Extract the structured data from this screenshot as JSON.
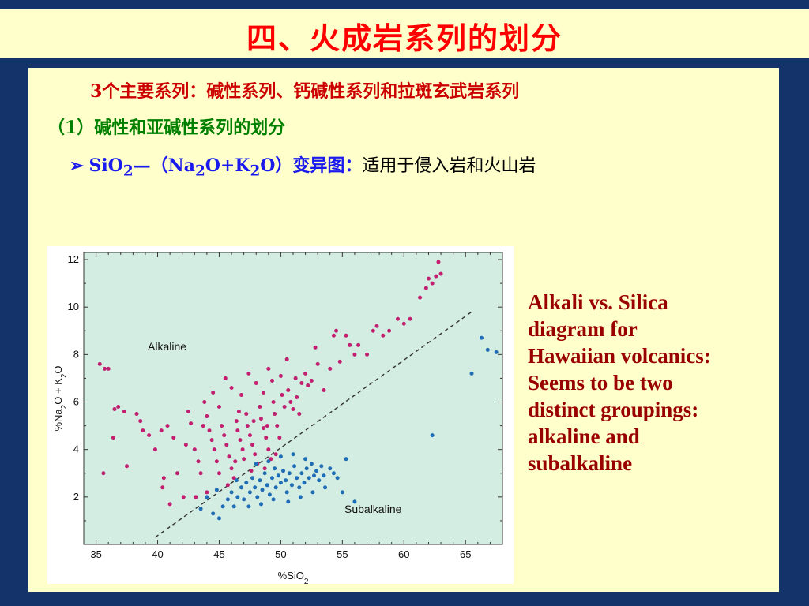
{
  "slide": {
    "title": "四、火成岩系列的划分",
    "line1": "3个主要系列：碱性系列、钙碱性系列和拉斑玄武岩系列",
    "line2": "（1）碱性和亚碱性系列的划分",
    "line3": {
      "bullet": "➢",
      "p1": "SiO",
      "s1": "2",
      "p2": "—（Na",
      "s2": "2",
      "p3": "O+K",
      "s3": "2",
      "p4": "O）变异图：",
      "p5": "适用于侵入岩和火山岩"
    },
    "caption": [
      "Alkali vs. Silica",
      "diagram for",
      "Hawaiian volcanics:",
      "Seems to be two",
      "distinct groupings:",
      "alkaline and",
      "subalkaline"
    ]
  },
  "colors": {
    "background": "#13336a",
    "panel": "#ffffcc",
    "plot_bg": "#d4ede2",
    "alkaline": "#c0206f",
    "subalkaline": "#1f6db5",
    "title": "#ff0000"
  },
  "chart_data": {
    "type": "scatter",
    "title": "",
    "xlabel": "%SiO2",
    "ylabel": "%Na2O + K2O",
    "xlim": [
      34,
      68
    ],
    "ylim": [
      0,
      12.3
    ],
    "x_ticks": [
      35,
      40,
      45,
      50,
      55,
      60,
      65
    ],
    "y_ticks": [
      2,
      4,
      6,
      8,
      10,
      12
    ],
    "annotations": [
      "Alkaline",
      "Subalkaline"
    ],
    "divider": {
      "x": [
        39.8,
        65.5
      ],
      "y": [
        0.3,
        9.8
      ],
      "style": "dashed"
    },
    "series": [
      {
        "key": "alkaline",
        "points": [
          [
            35.3,
            7.6
          ],
          [
            35.7,
            7.4
          ],
          [
            36.0,
            7.4
          ],
          [
            35.6,
            3.0
          ],
          [
            36.5,
            5.7
          ],
          [
            36.8,
            5.8
          ],
          [
            37.3,
            5.6
          ],
          [
            37.5,
            3.3
          ],
          [
            36.4,
            4.5
          ],
          [
            38.3,
            5.5
          ],
          [
            38.6,
            5.2
          ],
          [
            38.8,
            4.8
          ],
          [
            39.3,
            4.6
          ],
          [
            39.8,
            4.0
          ],
          [
            40.3,
            4.8
          ],
          [
            40.5,
            2.8
          ],
          [
            40.4,
            2.4
          ],
          [
            40.8,
            5.0
          ],
          [
            41.3,
            4.5
          ],
          [
            41.6,
            3.0
          ],
          [
            41.0,
            1.7
          ],
          [
            42.1,
            2.0
          ],
          [
            42.3,
            4.2
          ],
          [
            42.5,
            5.6
          ],
          [
            42.7,
            5.1
          ],
          [
            43.1,
            2.0
          ],
          [
            43.0,
            4.0
          ],
          [
            43.3,
            3.5
          ],
          [
            43.7,
            5.0
          ],
          [
            44.0,
            5.4
          ],
          [
            44.2,
            4.8
          ],
          [
            44.4,
            4.4
          ],
          [
            44.6,
            4.0
          ],
          [
            44.8,
            3.5
          ],
          [
            45.0,
            3.0
          ],
          [
            45.2,
            5.0
          ],
          [
            45.4,
            4.6
          ],
          [
            45.6,
            4.2
          ],
          [
            45.8,
            3.7
          ],
          [
            46.0,
            3.2
          ],
          [
            46.2,
            2.8
          ],
          [
            46.4,
            5.2
          ],
          [
            46.5,
            4.8
          ],
          [
            46.7,
            4.4
          ],
          [
            46.9,
            4.0
          ],
          [
            47.0,
            3.6
          ],
          [
            47.2,
            5.5
          ],
          [
            47.3,
            5.0
          ],
          [
            47.5,
            4.6
          ],
          [
            47.7,
            4.2
          ],
          [
            47.9,
            3.8
          ],
          [
            48.1,
            3.4
          ],
          [
            48.3,
            5.8
          ],
          [
            48.4,
            5.3
          ],
          [
            48.6,
            4.9
          ],
          [
            48.8,
            4.5
          ],
          [
            49.0,
            4.0
          ],
          [
            49.2,
            3.6
          ],
          [
            49.4,
            6.0
          ],
          [
            49.5,
            5.5
          ],
          [
            49.7,
            5.0
          ],
          [
            49.9,
            4.5
          ],
          [
            50.1,
            6.3
          ],
          [
            50.3,
            5.8
          ],
          [
            50.6,
            6.5
          ],
          [
            50.8,
            6.0
          ],
          [
            51.0,
            5.7
          ],
          [
            51.3,
            6.2
          ],
          [
            51.5,
            5.5
          ],
          [
            51.7,
            6.8
          ],
          [
            52.0,
            7.2
          ],
          [
            52.2,
            6.7
          ],
          [
            52.5,
            6.9
          ],
          [
            53.0,
            7.6
          ],
          [
            53.5,
            6.5
          ],
          [
            54.0,
            7.4
          ],
          [
            54.3,
            8.8
          ],
          [
            54.5,
            9.0
          ],
          [
            54.8,
            7.7
          ],
          [
            55.3,
            8.8
          ],
          [
            55.6,
            8.4
          ],
          [
            56.0,
            8.0
          ],
          [
            56.3,
            8.4
          ],
          [
            57.0,
            8.0
          ],
          [
            57.5,
            9.0
          ],
          [
            57.8,
            9.2
          ],
          [
            58.3,
            8.8
          ],
          [
            58.8,
            9.0
          ],
          [
            59.5,
            9.5
          ],
          [
            60.0,
            9.3
          ],
          [
            60.5,
            9.5
          ],
          [
            61.3,
            10.4
          ],
          [
            61.8,
            10.8
          ],
          [
            62.0,
            11.2
          ],
          [
            62.3,
            11.0
          ],
          [
            62.6,
            11.3
          ],
          [
            62.8,
            11.9
          ],
          [
            63.0,
            11.4
          ],
          [
            45.5,
            7.0
          ],
          [
            46.0,
            6.6
          ],
          [
            46.8,
            6.3
          ],
          [
            47.4,
            7.2
          ],
          [
            48.0,
            6.8
          ],
          [
            48.6,
            6.4
          ],
          [
            49.0,
            7.4
          ],
          [
            49.3,
            6.9
          ],
          [
            50.0,
            7.1
          ],
          [
            50.5,
            7.8
          ],
          [
            51.2,
            7.0
          ],
          [
            52.8,
            8.3
          ],
          [
            44.5,
            6.4
          ],
          [
            43.8,
            6.0
          ],
          [
            45.0,
            5.8
          ],
          [
            46.6,
            5.6
          ],
          [
            47.8,
            5.2
          ],
          [
            48.9,
            5.0
          ],
          [
            46.3,
            3.5
          ],
          [
            47.6,
            3.1
          ],
          [
            48.7,
            3.2
          ],
          [
            49.6,
            3.8
          ],
          [
            44.0,
            2.2
          ],
          [
            43.5,
            3.0
          ],
          [
            45.7,
            2.5
          ]
        ]
      },
      {
        "key": "subalkaline",
        "points": [
          [
            44.5,
            1.3
          ],
          [
            45.0,
            1.1
          ],
          [
            45.3,
            1.6
          ],
          [
            45.7,
            1.9
          ],
          [
            46.0,
            2.2
          ],
          [
            46.2,
            1.6
          ],
          [
            46.5,
            2.0
          ],
          [
            46.8,
            2.4
          ],
          [
            47.0,
            1.9
          ],
          [
            47.2,
            2.6
          ],
          [
            47.5,
            2.2
          ],
          [
            47.7,
            2.8
          ],
          [
            47.9,
            2.4
          ],
          [
            48.1,
            2.0
          ],
          [
            48.3,
            2.7
          ],
          [
            48.5,
            2.3
          ],
          [
            48.7,
            3.0
          ],
          [
            48.9,
            2.5
          ],
          [
            49.1,
            2.1
          ],
          [
            49.3,
            2.8
          ],
          [
            49.5,
            3.2
          ],
          [
            49.6,
            2.4
          ],
          [
            49.8,
            2.9
          ],
          [
            50.0,
            2.6
          ],
          [
            50.2,
            3.1
          ],
          [
            50.4,
            2.7
          ],
          [
            50.5,
            2.2
          ],
          [
            50.7,
            3.0
          ],
          [
            50.9,
            2.5
          ],
          [
            51.1,
            3.3
          ],
          [
            51.3,
            2.8
          ],
          [
            51.5,
            2.4
          ],
          [
            51.7,
            3.0
          ],
          [
            51.9,
            2.6
          ],
          [
            52.1,
            3.2
          ],
          [
            52.3,
            2.8
          ],
          [
            52.5,
            3.4
          ],
          [
            52.7,
            2.9
          ],
          [
            52.9,
            3.1
          ],
          [
            53.1,
            2.7
          ],
          [
            53.3,
            3.3
          ],
          [
            53.5,
            2.9
          ],
          [
            54.0,
            3.2
          ],
          [
            54.3,
            3.0
          ],
          [
            54.6,
            2.8
          ],
          [
            55.3,
            3.6
          ],
          [
            55.0,
            2.2
          ],
          [
            56.0,
            1.8
          ],
          [
            43.5,
            1.5
          ],
          [
            44.0,
            2.0
          ],
          [
            44.8,
            2.3
          ],
          [
            46.4,
            2.7
          ],
          [
            47.4,
            1.6
          ],
          [
            48.4,
            1.7
          ],
          [
            49.4,
            1.9
          ],
          [
            50.6,
            1.8
          ],
          [
            51.6,
            2.0
          ],
          [
            52.6,
            2.2
          ],
          [
            53.6,
            2.4
          ],
          [
            65.5,
            7.2
          ],
          [
            66.3,
            8.7
          ],
          [
            66.8,
            8.2
          ],
          [
            67.5,
            8.1
          ],
          [
            62.3,
            4.6
          ],
          [
            48.0,
            3.4
          ],
          [
            49.0,
            3.5
          ],
          [
            50.0,
            3.7
          ],
          [
            51.0,
            3.8
          ],
          [
            52.0,
            3.6
          ]
        ]
      }
    ]
  }
}
